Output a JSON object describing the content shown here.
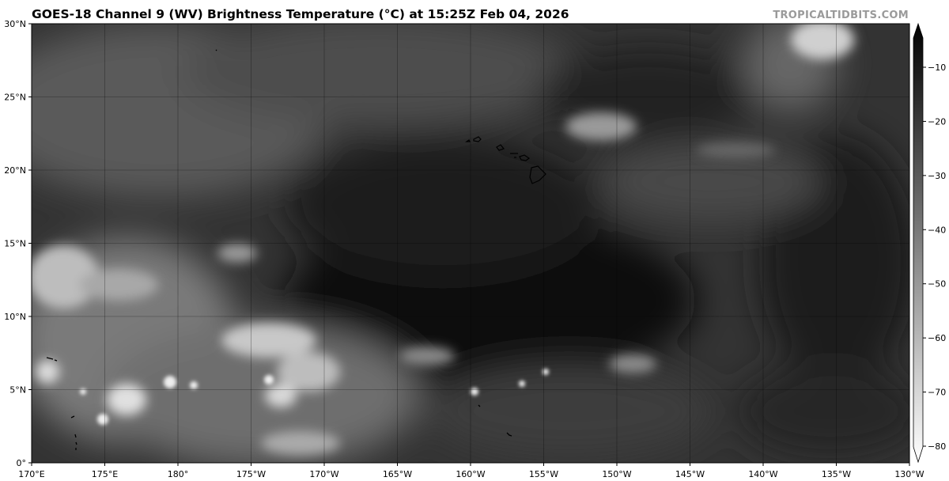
{
  "header": {
    "title": "GOES-18 Channel 9 (WV) Brightness Temperature (°C) at 15:25Z Feb 04, 2026",
    "watermark": "TROPICALTIDBITS.COM"
  },
  "map": {
    "projection": "equirectangular",
    "longitude_range": [
      "170°E",
      "130°W"
    ],
    "latitude_range": [
      "0°",
      "30°N"
    ],
    "gridlines": true,
    "x_ticks": [
      "170°E",
      "175°E",
      "180°",
      "175°W",
      "170°W",
      "165°W",
      "160°W",
      "155°W",
      "150°W",
      "145°W",
      "140°W",
      "135°W",
      "130°W"
    ],
    "y_ticks": [
      "0°",
      "5°N",
      "10°N",
      "15°N",
      "20°N",
      "25°N",
      "30°N"
    ],
    "features": [
      "Hawaiian Islands",
      "Marshall Islands",
      "Kiribati atolls"
    ]
  },
  "colorbar": {
    "colormap": "grayscale (dark = warm, light = cold)",
    "min": -80,
    "max": -10,
    "extend": "both",
    "ticks": [
      "−10",
      "−20",
      "−30",
      "−40",
      "−50",
      "−60",
      "−70",
      "−80"
    ],
    "colors": {
      "warm": "#000000",
      "cold": "#ffffff"
    }
  }
}
